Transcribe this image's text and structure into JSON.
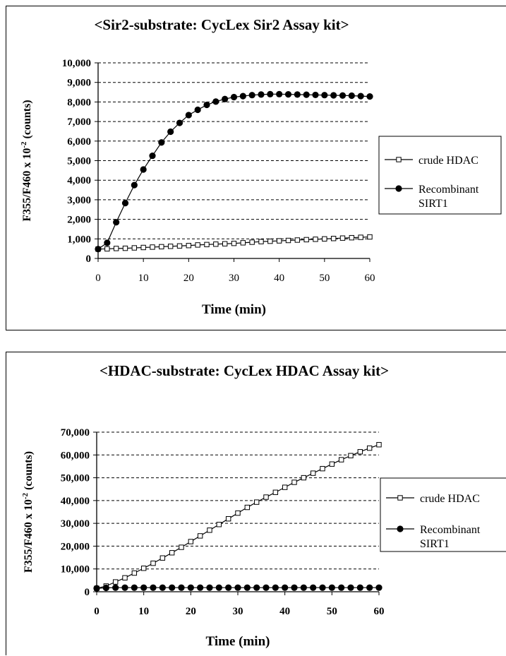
{
  "chart_data": [
    {
      "type": "line",
      "title": "<Sir2-substrate: CycLex Sir2 Assay kit>",
      "xlabel": "Time (min)",
      "ylabel_parts": [
        "F355/F460 x 10",
        "-2",
        " (counts)"
      ],
      "xlim": [
        0,
        60
      ],
      "ylim": [
        0,
        10000
      ],
      "xticks": [
        0,
        10,
        20,
        30,
        40,
        50,
        60
      ],
      "xtick_labels": [
        "0",
        "10",
        "20",
        "30",
        "40",
        "50",
        "60"
      ],
      "yticks": [
        0,
        1000,
        2000,
        3000,
        4000,
        5000,
        6000,
        7000,
        8000,
        9000,
        10000
      ],
      "ytick_labels": [
        "0",
        "1,000",
        "2,000",
        "3,000",
        "4,000",
        "5,000",
        "6,000",
        "7,000",
        "8,000",
        "9,000",
        "10,000"
      ],
      "grid": "horizontal dashed",
      "legend_position": "right",
      "series": [
        {
          "name": "crude HDAC",
          "lines": [
            "crude HDAC"
          ],
          "marker": "open-square",
          "x": [
            0,
            2,
            4,
            6,
            8,
            10,
            12,
            14,
            16,
            18,
            20,
            22,
            24,
            26,
            28,
            30,
            32,
            34,
            36,
            38,
            40,
            42,
            44,
            46,
            48,
            50,
            52,
            54,
            56,
            58,
            60
          ],
          "y": [
            480,
            490,
            510,
            520,
            540,
            560,
            580,
            600,
            620,
            640,
            660,
            690,
            710,
            730,
            750,
            770,
            800,
            830,
            860,
            880,
            900,
            920,
            940,
            960,
            980,
            1000,
            1020,
            1040,
            1060,
            1080,
            1100
          ]
        },
        {
          "name": "Recombinant SIRT1",
          "lines": [
            "Recombinant",
            "SIRT1"
          ],
          "marker": "filled-circle",
          "x": [
            0,
            2,
            4,
            6,
            8,
            10,
            12,
            14,
            16,
            18,
            20,
            22,
            24,
            26,
            28,
            30,
            32,
            34,
            36,
            38,
            40,
            42,
            44,
            46,
            48,
            50,
            52,
            54,
            56,
            58,
            60
          ],
          "y": [
            480,
            800,
            1850,
            2830,
            3750,
            4550,
            5250,
            5930,
            6480,
            6930,
            7330,
            7600,
            7850,
            8020,
            8150,
            8250,
            8300,
            8350,
            8380,
            8400,
            8400,
            8390,
            8380,
            8370,
            8360,
            8350,
            8340,
            8330,
            8320,
            8300,
            8280
          ]
        }
      ]
    },
    {
      "type": "line",
      "title": "<HDAC-substrate: CycLex HDAC Assay kit>",
      "xlabel": "Time (min)",
      "ylabel_parts": [
        "F355/F460 x 10",
        "-2",
        " (counts)"
      ],
      "xlim": [
        0,
        60
      ],
      "ylim": [
        0,
        70000
      ],
      "xticks": [
        0,
        10,
        20,
        30,
        40,
        50,
        60
      ],
      "xtick_labels": [
        "0",
        "10",
        "20",
        "30",
        "40",
        "50",
        "60"
      ],
      "yticks": [
        0,
        10000,
        20000,
        30000,
        40000,
        50000,
        60000,
        70000
      ],
      "ytick_labels": [
        "0",
        "10,000",
        "20,000",
        "30,000",
        "40,000",
        "50,000",
        "60,000",
        "70,000"
      ],
      "grid": "horizontal dashed",
      "legend_position": "right",
      "series": [
        {
          "name": "crude HDAC",
          "lines": [
            "crude HDAC"
          ],
          "marker": "open-square",
          "x": [
            0,
            2,
            4,
            6,
            8,
            10,
            12,
            14,
            16,
            18,
            20,
            22,
            24,
            26,
            28,
            30,
            32,
            34,
            36,
            38,
            40,
            42,
            44,
            46,
            48,
            50,
            52,
            54,
            56,
            58,
            60
          ],
          "y": [
            1500,
            2500,
            4300,
            6100,
            8200,
            10300,
            12500,
            14800,
            17100,
            19500,
            22000,
            24500,
            27000,
            29500,
            32000,
            34500,
            37000,
            39300,
            41500,
            43600,
            45800,
            48000,
            50000,
            52000,
            54000,
            56000,
            57900,
            59700,
            61400,
            63000,
            64500
          ]
        },
        {
          "name": "Recombinant SIRT1",
          "lines": [
            "Recombinant",
            "SIRT1"
          ],
          "marker": "filled-circle",
          "x": [
            0,
            2,
            4,
            6,
            8,
            10,
            12,
            14,
            16,
            18,
            20,
            22,
            24,
            26,
            28,
            30,
            32,
            34,
            36,
            38,
            40,
            42,
            44,
            46,
            48,
            50,
            52,
            54,
            56,
            58,
            60
          ],
          "y": [
            1500,
            1700,
            1800,
            1800,
            1800,
            1800,
            1800,
            1800,
            1800,
            1800,
            1800,
            1800,
            1800,
            1800,
            1800,
            1800,
            1800,
            1800,
            1800,
            1800,
            1800,
            1800,
            1800,
            1800,
            1800,
            1800,
            1800,
            1800,
            1800,
            1800,
            1800
          ]
        }
      ]
    }
  ]
}
